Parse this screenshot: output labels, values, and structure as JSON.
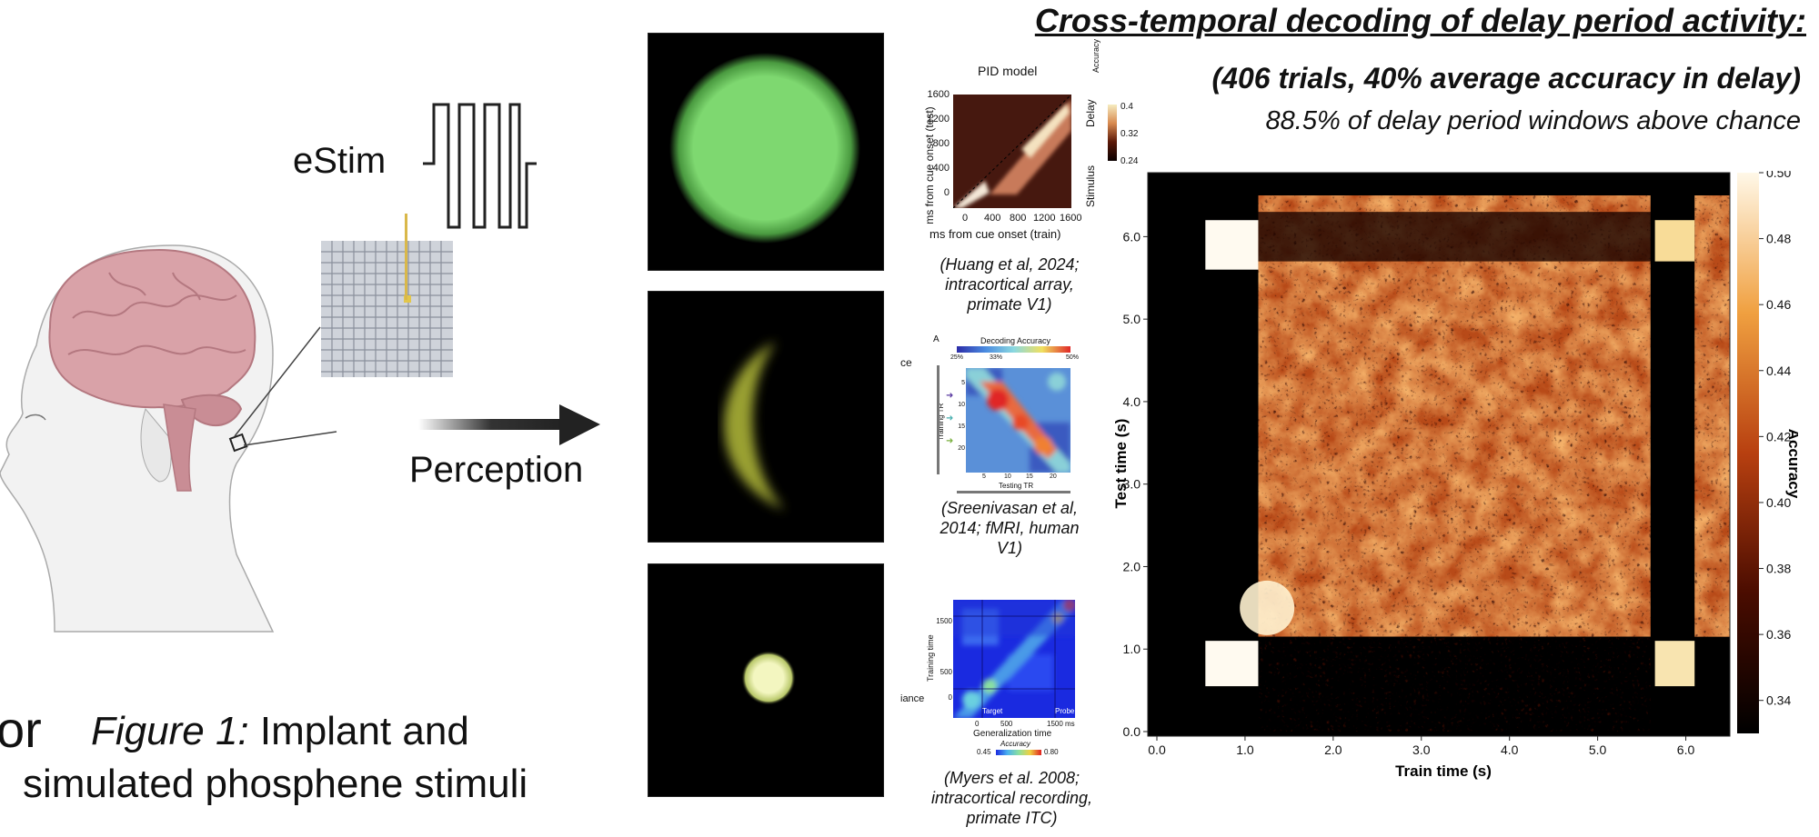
{
  "left": {
    "estim_label": "eStim",
    "perception_label": "Perception",
    "partial_letters": "or",
    "figure_caption_italic": "Figure 1:",
    "figure_caption_line1": " Implant and",
    "figure_caption_line2": "simulated phosphene stimuli"
  },
  "header": {
    "title": "Cross-temporal decoding of delay period activity:",
    "subtitle": "(406 trials, 40% average accuracy in delay)",
    "stat_line": "88.5% of delay period windows above chance"
  },
  "refs": [
    {
      "caption": "(Huang et al, 2024; intracortical array, primate V1)",
      "title": "PID model",
      "ylabel": "ms from cue onset (test)",
      "xlabel": "ms from cue onset (train)",
      "yticks": [
        "1600",
        "1200",
        "800",
        "400",
        "0"
      ],
      "xticks": [
        "0",
        "400",
        "800",
        "1200",
        "1600"
      ],
      "colorbar_label": "Accuracy",
      "colorbar_ticks": [
        "0.4",
        "0.32",
        "0.24"
      ],
      "side_labels": [
        "Delay",
        "Stimulus"
      ]
    },
    {
      "caption": "(Sreenivasan et al, 2014; fMRI, human V1)",
      "panel_letter": "A",
      "title": "Decoding Accuracy",
      "scale_ticks": [
        "25%",
        "33%",
        "50%"
      ],
      "ylabel": "Training TR",
      "xlabel": "Testing TR",
      "yticks": [
        "5",
        "10",
        "15",
        "20"
      ],
      "xticks": [
        "5",
        "10",
        "15",
        "20"
      ],
      "cut_text": "ce"
    },
    {
      "caption": "(Myers et al. 2008; intracortical recording, primate ITC)",
      "ylabel": "Training time",
      "xlabel": "Generalization time",
      "yticks": [
        "1500",
        "500",
        "0"
      ],
      "xticks": [
        "0",
        "500",
        "1500 ms"
      ],
      "labels": [
        "Target",
        "Probe"
      ],
      "colorbar_label": "Accuracy",
      "colorbar_ticks": [
        "0.45",
        "0.80"
      ],
      "cut_text": "iance"
    }
  ],
  "chart_data": {
    "type": "heatmap",
    "title": "",
    "xlabel": "Train time (s)",
    "ylabel": "Test time (s)",
    "colorbar_label": "Accuracy",
    "xlim": [
      0.0,
      6.5
    ],
    "ylim": [
      0.0,
      6.5
    ],
    "xticks": [
      "0.0",
      "1.0",
      "2.0",
      "3.0",
      "4.0",
      "5.0",
      "6.0"
    ],
    "yticks": [
      "0.0",
      "1.0",
      "2.0",
      "3.0",
      "4.0",
      "5.0",
      "6.0"
    ],
    "colorbar_range": [
      0.33,
      0.5
    ],
    "colorbar_ticks": [
      "0.34",
      "0.36",
      "0.38",
      "0.40",
      "0.42",
      "0.44",
      "0.46",
      "0.48",
      "0.50"
    ],
    "colormap": "afmhot",
    "colors": {
      "low": "#000000",
      "mid": "#c0501a",
      "high": "#fff8e8"
    }
  }
}
